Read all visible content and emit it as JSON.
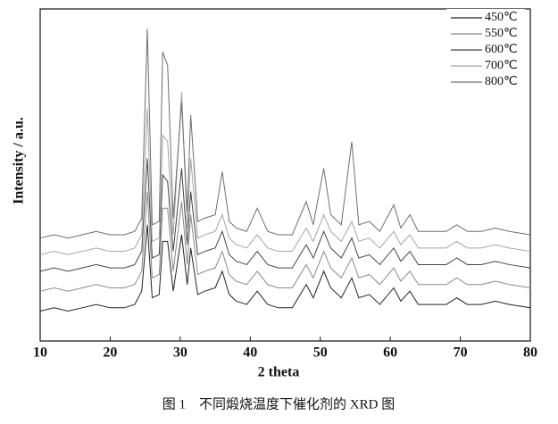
{
  "chart_data": {
    "type": "line",
    "xlabel": "2 theta",
    "ylabel": "Intensity / a.u.",
    "caption": "图 1　不同煅烧温度下催化剂的 XRD 图",
    "xlim": [
      10,
      80
    ],
    "xticks": [
      10,
      20,
      30,
      40,
      50,
      60,
      70,
      80
    ],
    "ylim": [
      0,
      100
    ],
    "legend": "upper right",
    "x": [
      10,
      12,
      14,
      16,
      18,
      20,
      22,
      23.5,
      24.5,
      25.3,
      26,
      27,
      27.5,
      28.2,
      29,
      30.2,
      31,
      31.5,
      32.5,
      33.5,
      35,
      36,
      37,
      38,
      39.5,
      41,
      42.5,
      44,
      46,
      48,
      49,
      50.5,
      51.5,
      53,
      54.5,
      55.5,
      57,
      58.5,
      60.5,
      61.5,
      62.8,
      64,
      66,
      68,
      69.5,
      71,
      73,
      75,
      77,
      80
    ],
    "series": [
      {
        "name": "450℃",
        "color": "#222222",
        "values": [
          9,
          10,
          9,
          10,
          11,
          10,
          10,
          11,
          15,
          35,
          13,
          14,
          30,
          30,
          15,
          32,
          17,
          28,
          14,
          15,
          16,
          21,
          14,
          12,
          11,
          15,
          11,
          10,
          10,
          17,
          13,
          21,
          16,
          13,
          19,
          13,
          14,
          11,
          16,
          12,
          15,
          11,
          11,
          11,
          13,
          11,
          11,
          12,
          11,
          10
        ]
      },
      {
        "name": "550℃",
        "color": "#8a8a8a",
        "values": [
          15,
          16,
          15,
          16,
          17,
          16,
          16,
          17,
          21,
          45,
          19,
          20,
          40,
          40,
          21,
          42,
          23,
          38,
          20,
          21,
          22,
          27,
          20,
          18,
          17,
          21,
          17,
          16,
          16,
          23,
          19,
          27,
          22,
          19,
          25,
          19,
          20,
          17,
          22,
          18,
          21,
          17,
          17,
          17,
          19,
          17,
          17,
          18,
          17,
          16
        ]
      },
      {
        "name": "600℃",
        "color": "#444444",
        "values": [
          21,
          22,
          21,
          22,
          23,
          22,
          22,
          23,
          27,
          55,
          25,
          26,
          50,
          48,
          27,
          52,
          29,
          45,
          26,
          27,
          28,
          33,
          26,
          24,
          23,
          27,
          23,
          22,
          22,
          29,
          25,
          33,
          28,
          25,
          31,
          25,
          26,
          23,
          28,
          24,
          27,
          23,
          23,
          23,
          25,
          23,
          23,
          24,
          23,
          22
        ]
      },
      {
        "name": "700℃",
        "color": "#a5a5a5",
        "values": [
          26,
          27,
          26,
          27,
          28,
          27,
          27,
          28,
          32,
          70,
          30,
          31,
          62,
          60,
          32,
          75,
          34,
          55,
          31,
          32,
          33,
          38,
          31,
          29,
          28,
          32,
          28,
          27,
          27,
          34,
          30,
          38,
          33,
          30,
          36,
          30,
          31,
          28,
          33,
          29,
          32,
          28,
          28,
          28,
          30,
          28,
          28,
          29,
          28,
          27
        ]
      },
      {
        "name": "800℃",
        "color": "#6e6e6e",
        "values": [
          31,
          32,
          31,
          32,
          33,
          32,
          32,
          33,
          37,
          94,
          35,
          36,
          87,
          83,
          37,
          72,
          39,
          68,
          36,
          37,
          38,
          51,
          36,
          34,
          33,
          40,
          33,
          32,
          32,
          42,
          35,
          52,
          38,
          35,
          60,
          35,
          36,
          33,
          41,
          34,
          38,
          33,
          33,
          33,
          35,
          33,
          33,
          34,
          33,
          32
        ]
      }
    ]
  }
}
